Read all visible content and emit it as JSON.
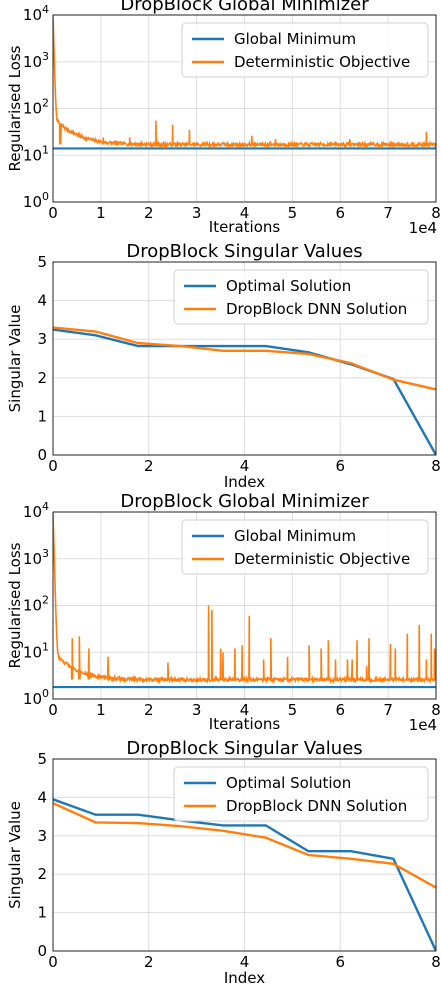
{
  "chart_data": [
    {
      "type": "line",
      "title": "DropBlock Global Minimizer",
      "xlabel": "Iterations",
      "ylabel": "Regularised Loss",
      "x_multiplier_label": "1e4",
      "yscale": "log",
      "xlim": [
        0,
        8
      ],
      "ylim_exponents": [
        0,
        4
      ],
      "xticks": [
        "0",
        "1",
        "2",
        "3",
        "4",
        "5",
        "6",
        "7",
        "8"
      ],
      "yticks": [
        "10^0",
        "10^1",
        "10^2",
        "10^3",
        "10^4"
      ],
      "legend_position": "top-right",
      "grid": true,
      "series": [
        {
          "name": "Global Minimum",
          "color": "#1f77b4",
          "kind": "hline",
          "value": 14
        },
        {
          "name": "Deterministic Objective",
          "color": "#ff7f0e",
          "kind": "trace",
          "start": 10000,
          "plateau": 17,
          "spikes": [
            [
              0.15,
              42
            ],
            [
              1.05,
              24
            ],
            [
              1.6,
              24
            ],
            [
              2.15,
              55
            ],
            [
              2.5,
              45
            ],
            [
              2.85,
              35
            ],
            [
              4.15,
              26
            ],
            [
              4.65,
              22
            ],
            [
              6.2,
              22
            ],
            [
              7.8,
              32
            ]
          ]
        }
      ]
    },
    {
      "type": "line",
      "title": "DropBlock Singular Values",
      "xlabel": "Index",
      "ylabel": "Singular Value",
      "xlim": [
        0,
        9
      ],
      "ylim": [
        0,
        5
      ],
      "xticks": [
        "0",
        "2",
        "4",
        "6",
        "8"
      ],
      "yticks": [
        "0",
        "1",
        "2",
        "3",
        "4",
        "5"
      ],
      "legend_position": "top-right",
      "grid": true,
      "x": [
        0,
        1,
        2,
        3,
        4,
        5,
        6,
        7,
        8,
        9
      ],
      "series": [
        {
          "name": "Optimal Solution",
          "color": "#1f77b4",
          "values": [
            3.25,
            3.1,
            2.82,
            2.82,
            2.82,
            2.82,
            2.66,
            2.35,
            1.97,
            0.0
          ]
        },
        {
          "name": "DropBlock DNN Solution",
          "color": "#ff7f0e",
          "values": [
            3.3,
            3.2,
            2.9,
            2.82,
            2.7,
            2.7,
            2.62,
            2.38,
            1.95,
            1.7
          ]
        }
      ]
    },
    {
      "type": "line",
      "title": "DropBlock Global Minimizer",
      "xlabel": "Iterations",
      "ylabel": "Regularised Loss",
      "x_multiplier_label": "1e4",
      "yscale": "log",
      "xlim": [
        0,
        8
      ],
      "ylim_exponents": [
        0,
        4
      ],
      "xticks": [
        "0",
        "1",
        "2",
        "3",
        "4",
        "5",
        "6",
        "7",
        "8"
      ],
      "yticks": [
        "10^0",
        "10^1",
        "10^2",
        "10^3",
        "10^4"
      ],
      "legend_position": "top-right",
      "grid": true,
      "series": [
        {
          "name": "Global Minimum",
          "color": "#1f77b4",
          "kind": "hline",
          "value": 1.8
        },
        {
          "name": "Deterministic Objective",
          "color": "#ff7f0e",
          "kind": "trace",
          "start": 10000,
          "plateau": 2.6,
          "spikes": [
            [
              0.4,
              20
            ],
            [
              0.55,
              22
            ],
            [
              0.75,
              12
            ],
            [
              1.15,
              8
            ],
            [
              2.4,
              6
            ],
            [
              3.25,
              100
            ],
            [
              3.32,
              80
            ],
            [
              3.5,
              12
            ],
            [
              3.55,
              10
            ],
            [
              3.8,
              12
            ],
            [
              3.95,
              14
            ],
            [
              4.1,
              60
            ],
            [
              4.4,
              7
            ],
            [
              4.55,
              20
            ],
            [
              4.9,
              8
            ],
            [
              5.35,
              14
            ],
            [
              5.6,
              12
            ],
            [
              5.75,
              18
            ],
            [
              5.9,
              7
            ],
            [
              6.15,
              7
            ],
            [
              6.25,
              7
            ],
            [
              6.35,
              18
            ],
            [
              6.55,
              5
            ],
            [
              6.6,
              20
            ],
            [
              7.05,
              15
            ],
            [
              7.15,
              12
            ],
            [
              7.4,
              25
            ],
            [
              7.65,
              38
            ],
            [
              7.8,
              7
            ],
            [
              7.9,
              25
            ],
            [
              7.97,
              12
            ]
          ]
        }
      ]
    },
    {
      "type": "line",
      "title": "DropBlock Singular Values",
      "xlabel": "Index",
      "ylabel": "Singular Value",
      "xlim": [
        0,
        9
      ],
      "ylim": [
        0,
        5
      ],
      "xticks": [
        "0",
        "2",
        "4",
        "6",
        "8"
      ],
      "yticks": [
        "0",
        "1",
        "2",
        "3",
        "4",
        "5"
      ],
      "legend_position": "top-right",
      "grid": true,
      "x": [
        0,
        1,
        2,
        3,
        4,
        5,
        6,
        7,
        8,
        9
      ],
      "series": [
        {
          "name": "Optimal Solution",
          "color": "#1f77b4",
          "values": [
            3.95,
            3.55,
            3.55,
            3.4,
            3.27,
            3.27,
            2.6,
            2.6,
            2.4,
            0.0
          ]
        },
        {
          "name": "DropBlock DNN Solution",
          "color": "#ff7f0e",
          "values": [
            3.85,
            3.35,
            3.33,
            3.25,
            3.13,
            2.95,
            2.5,
            2.4,
            2.27,
            1.65
          ]
        }
      ]
    }
  ]
}
